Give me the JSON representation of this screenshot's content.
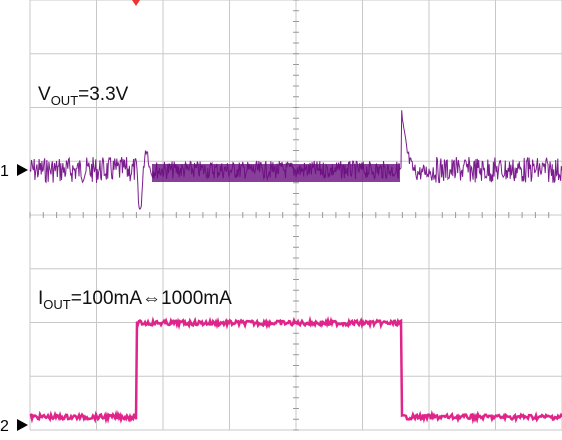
{
  "channel_labels": [
    {
      "symbol": "V",
      "subscript": "OUT",
      "text": "=3.3V"
    },
    {
      "symbol": "I",
      "subscript": "OUT",
      "text": "=100mA⇔1000mA"
    }
  ],
  "markers": [
    "1",
    "2"
  ]
}
